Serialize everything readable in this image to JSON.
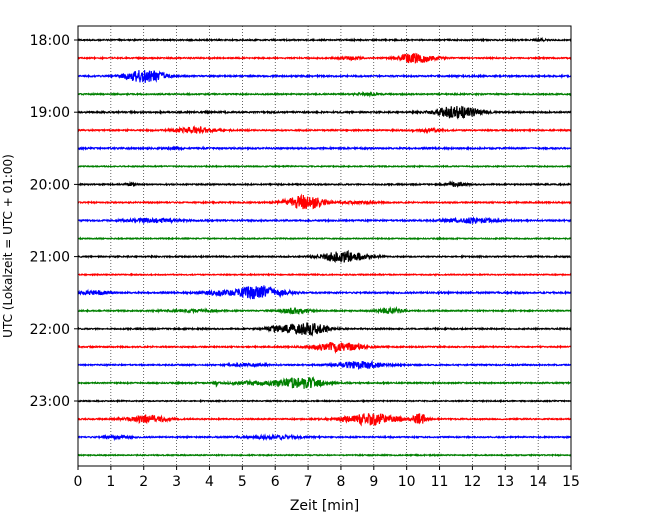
{
  "chart_data": {
    "type": "line",
    "title": "",
    "xlabel": "Zeit  [min]",
    "ylabel": "UTC (Lokalzeit = UTC + 01:00)",
    "xlim": [
      0,
      15
    ],
    "x_ticks": [
      0,
      1,
      2,
      3,
      4,
      5,
      6,
      7,
      8,
      9,
      10,
      11,
      12,
      13,
      14,
      15
    ],
    "y_tick_labels": [
      "18:00",
      "19:00",
      "20:00",
      "21:00",
      "22:00",
      "23:00"
    ],
    "grid": "vertical dotted",
    "row_interval_minutes": 15,
    "colors": [
      "#000000",
      "#ff0000",
      "#0000ff",
      "#008000"
    ],
    "series": [
      {
        "start": "18:00",
        "color": "#000000",
        "baseline": 0.6,
        "bursts": [
          [
            14.1,
            0.1,
            1.2
          ]
        ]
      },
      {
        "start": "18:15",
        "color": "#ff0000",
        "baseline": 0.6,
        "bursts": [
          [
            10.3,
            0.35,
            5.0
          ],
          [
            8.3,
            0.2,
            1.5
          ]
        ]
      },
      {
        "start": "18:30",
        "color": "#0000ff",
        "baseline": 0.7,
        "bursts": [
          [
            2.1,
            0.35,
            6.0
          ],
          [
            1.6,
            0.25,
            1.5
          ]
        ]
      },
      {
        "start": "18:45",
        "color": "#008000",
        "baseline": 0.6,
        "bursts": [
          [
            8.8,
            0.3,
            1.0
          ]
        ]
      },
      {
        "start": "19:00",
        "color": "#000000",
        "baseline": 0.7,
        "bursts": [
          [
            11.4,
            0.4,
            5.5
          ],
          [
            12.0,
            0.3,
            2.0
          ]
        ]
      },
      {
        "start": "19:15",
        "color": "#ff0000",
        "baseline": 0.6,
        "bursts": [
          [
            3.6,
            0.45,
            3.0
          ],
          [
            10.7,
            0.3,
            1.5
          ]
        ]
      },
      {
        "start": "19:30",
        "color": "#0000ff",
        "baseline": 0.7,
        "bursts": [
          [
            2.9,
            0.15,
            1.2
          ]
        ]
      },
      {
        "start": "19:45",
        "color": "#008000",
        "baseline": 0.5,
        "bursts": []
      },
      {
        "start": "20:00",
        "color": "#000000",
        "baseline": 0.6,
        "bursts": [
          [
            11.5,
            0.2,
            2.0
          ],
          [
            1.6,
            0.1,
            1.5
          ]
        ]
      },
      {
        "start": "20:15",
        "color": "#ff0000",
        "baseline": 0.6,
        "bursts": [
          [
            6.9,
            0.4,
            7.0
          ],
          [
            8.5,
            0.4,
            1.0
          ]
        ]
      },
      {
        "start": "20:30",
        "color": "#0000ff",
        "baseline": 0.7,
        "bursts": [
          [
            2.3,
            0.45,
            2.0
          ],
          [
            12.0,
            0.5,
            2.5
          ]
        ]
      },
      {
        "start": "20:45",
        "color": "#008000",
        "baseline": 0.5,
        "bursts": []
      },
      {
        "start": "21:00",
        "color": "#000000",
        "baseline": 0.6,
        "bursts": [
          [
            8.1,
            0.45,
            5.5
          ]
        ]
      },
      {
        "start": "21:15",
        "color": "#ff0000",
        "baseline": 0.5,
        "bursts": []
      },
      {
        "start": "21:30",
        "color": "#0000ff",
        "baseline": 0.7,
        "bursts": [
          [
            5.5,
            0.5,
            7.0
          ],
          [
            0.5,
            0.3,
            2.0
          ],
          [
            4.2,
            0.3,
            2.0
          ]
        ]
      },
      {
        "start": "21:45",
        "color": "#008000",
        "baseline": 0.6,
        "bursts": [
          [
            6.6,
            0.3,
            3.0
          ],
          [
            9.5,
            0.25,
            3.0
          ],
          [
            3.5,
            0.5,
            1.0
          ]
        ]
      },
      {
        "start": "22:00",
        "color": "#000000",
        "baseline": 0.6,
        "bursts": [
          [
            7.0,
            0.4,
            6.0
          ],
          [
            6.1,
            0.3,
            2.5
          ]
        ]
      },
      {
        "start": "22:15",
        "color": "#ff0000",
        "baseline": 0.6,
        "bursts": [
          [
            7.9,
            0.5,
            4.5
          ]
        ]
      },
      {
        "start": "22:30",
        "color": "#0000ff",
        "baseline": 0.6,
        "bursts": [
          [
            8.6,
            0.5,
            3.5
          ],
          [
            5.2,
            0.4,
            1.2
          ]
        ]
      },
      {
        "start": "22:45",
        "color": "#008000",
        "baseline": 0.6,
        "bursts": [
          [
            6.8,
            0.5,
            5.5
          ],
          [
            4.2,
            0.05,
            2.5
          ],
          [
            5.3,
            0.5,
            1.5
          ]
        ]
      },
      {
        "start": "23:00",
        "color": "#000000",
        "baseline": 0.5,
        "bursts": []
      },
      {
        "start": "23:15",
        "color": "#ff0000",
        "baseline": 0.6,
        "bursts": [
          [
            2.1,
            0.4,
            4.0
          ],
          [
            8.9,
            0.55,
            6.0
          ],
          [
            10.4,
            0.15,
            5.0
          ]
        ]
      },
      {
        "start": "23:30",
        "color": "#0000ff",
        "baseline": 0.6,
        "bursts": [
          [
            6.0,
            0.6,
            1.5
          ],
          [
            1.2,
            0.3,
            1.2
          ]
        ]
      },
      {
        "start": "23:45",
        "color": "#008000",
        "baseline": 0.5,
        "bursts": []
      }
    ]
  }
}
